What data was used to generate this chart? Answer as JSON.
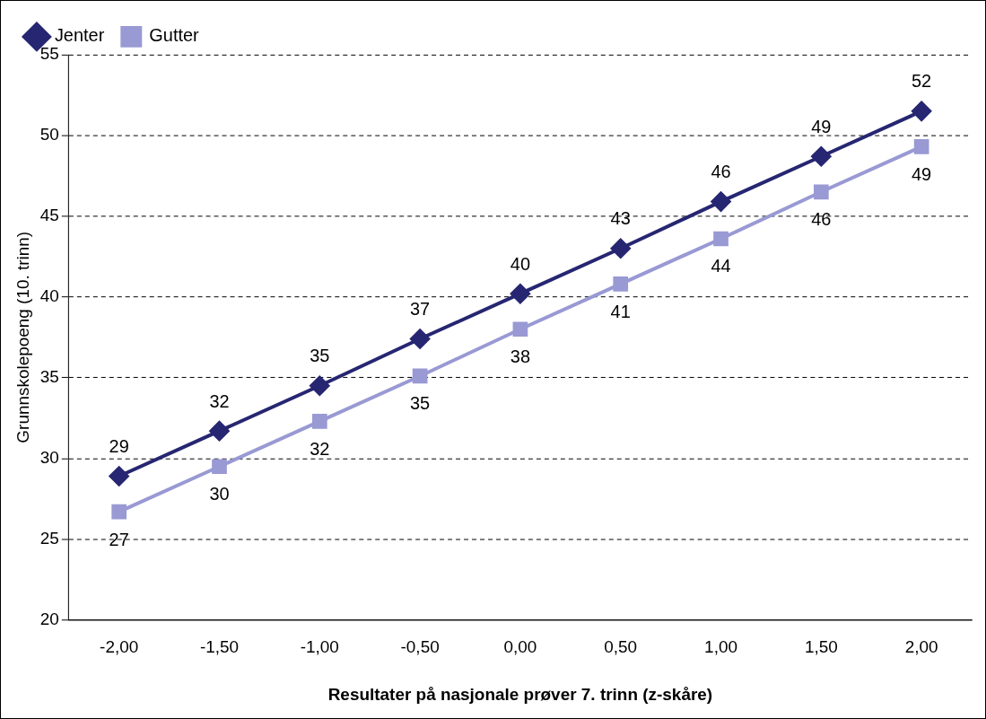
{
  "chart_data": {
    "type": "line",
    "xlabel": "Resultater på nasjonale prøver 7. trinn (z-skåre)",
    "ylabel": "Grunnskolepoeng (10. trinn)",
    "categories": [
      "-2,00",
      "-1,50",
      "-1,00",
      "-0,50",
      "0,00",
      "0,50",
      "1,00",
      "1,50",
      "2,00"
    ],
    "series": [
      {
        "name": "Jenter",
        "color": "#262672",
        "marker": "diamond",
        "values": [
          28.9,
          31.7,
          34.5,
          37.4,
          40.2,
          43.0,
          45.9,
          48.7,
          51.5
        ],
        "value_labels": [
          "29",
          "32",
          "35",
          "37",
          "40",
          "43",
          "46",
          "49",
          "52"
        ]
      },
      {
        "name": "Gutter",
        "color": "#9999d4",
        "marker": "square",
        "values": [
          26.7,
          29.5,
          32.3,
          35.1,
          38.0,
          40.8,
          43.6,
          46.5,
          49.3
        ],
        "value_labels": [
          "27",
          "30",
          "32",
          "35",
          "38",
          "41",
          "44",
          "46",
          "49"
        ]
      }
    ],
    "ylim": [
      20,
      55
    ],
    "yticks": [
      20,
      25,
      30,
      35,
      40,
      45,
      50,
      55
    ],
    "grid": "y",
    "legend": "top left"
  }
}
